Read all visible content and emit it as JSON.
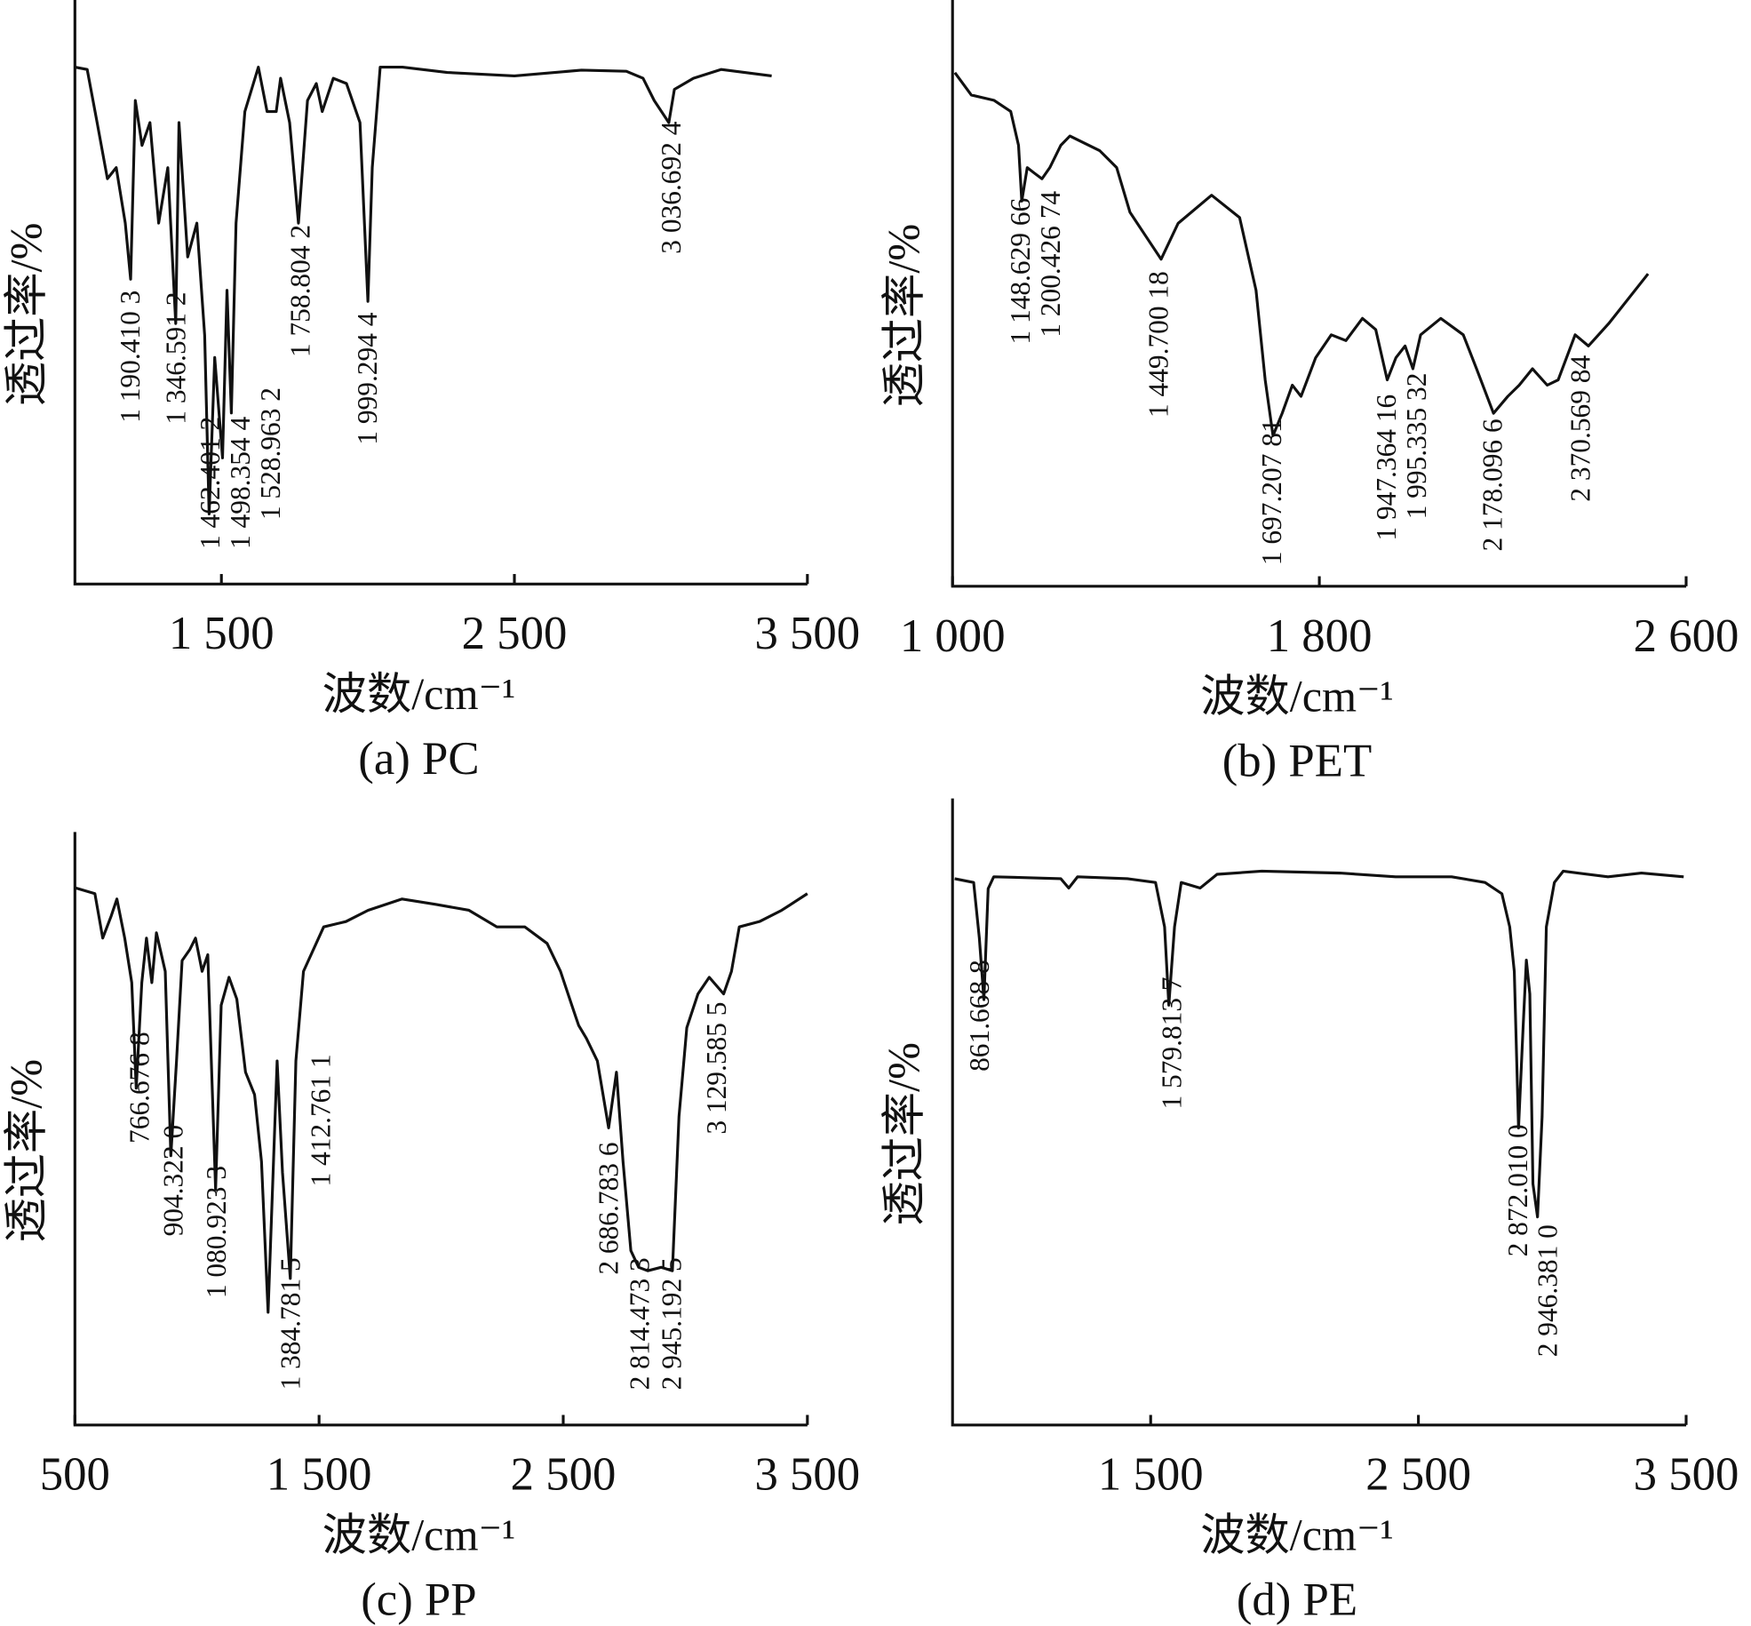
{
  "chart_data": [
    {
      "type": "line",
      "subtitle": "(a) PC",
      "xlabel": "波数/cm⁻¹",
      "ylabel": "透过率/%",
      "color": "#111111",
      "xlim": [
        1000,
        3500
      ],
      "ylim": [
        0,
        100
      ],
      "xticks": [
        {
          "value": 1500,
          "label": "1 500"
        },
        {
          "value": 2500,
          "label": "2 500"
        },
        {
          "value": 3500,
          "label": "3 500"
        }
      ],
      "x": [
        1000,
        1042,
        1076,
        1111,
        1141,
        1172,
        1190,
        1206,
        1229,
        1256,
        1286,
        1317,
        1344,
        1355,
        1385,
        1416,
        1443,
        1458,
        1477,
        1504,
        1519,
        1534,
        1550,
        1580,
        1626,
        1656,
        1687,
        1702,
        1733,
        1763,
        1794,
        1824,
        1844,
        1882,
        1927,
        1973,
        2000,
        2015,
        2042,
        2118,
        2271,
        2500,
        2729,
        2882,
        2939,
        2977,
        3027,
        3046,
        3111,
        3206,
        3378
      ],
      "values": [
        88.5,
        88.1,
        79.0,
        69.4,
        71.3,
        61.8,
        52.2,
        82.8,
        75.1,
        79.0,
        61.8,
        71.3,
        44.6,
        79.0,
        56.0,
        61.8,
        42.6,
        12.0,
        38.8,
        21.6,
        50.3,
        29.3,
        61.8,
        80.9,
        88.5,
        80.9,
        80.9,
        86.6,
        79.0,
        61.8,
        82.8,
        85.7,
        80.9,
        86.6,
        85.7,
        79.0,
        48.4,
        71.3,
        88.5,
        88.5,
        87.6,
        87.0,
        88.0,
        87.8,
        86.6,
        82.8,
        79.0,
        84.7,
        86.6,
        88.1,
        87.0
      ],
      "annotations": [
        {
          "x": 1190.4103,
          "label": "1 190.410 3"
        },
        {
          "x": 1346.5912,
          "label": "1 346.591 2"
        },
        {
          "x": 1462.4012,
          "label": "1 462.401 2"
        },
        {
          "x": 1498.3544,
          "label": "1 498.354 4"
        },
        {
          "x": 1528.9632,
          "label": "1 528.963 2"
        },
        {
          "x": 1758.8042,
          "label": "1 758.804 2"
        },
        {
          "x": 1999.2944,
          "label": "1 999.294 4"
        },
        {
          "x": 3036.6924,
          "label": "3 036.692 4"
        }
      ]
    },
    {
      "type": "line",
      "subtitle": "(b) PET",
      "xlabel": "波数/cm⁻¹",
      "ylabel": "透过率/%",
      "color": "#111111",
      "xlim": [
        1000,
        2600
      ],
      "ylim": [
        0,
        100
      ],
      "xticks": [
        {
          "value": 1000,
          "label": "1 000"
        },
        {
          "value": 1800,
          "label": "1 800"
        },
        {
          "value": 2600,
          "label": "2 600"
        }
      ],
      "x": [
        1005,
        1041,
        1090,
        1127,
        1144,
        1151,
        1163,
        1178,
        1195,
        1212,
        1236,
        1256,
        1321,
        1358,
        1387,
        1419,
        1455,
        1492,
        1565,
        1626,
        1662,
        1682,
        1699,
        1719,
        1741,
        1760,
        1792,
        1826,
        1858,
        1894,
        1923,
        1948,
        1967,
        1987,
        2004,
        2021,
        2065,
        2114,
        2143,
        2180,
        2211,
        2236,
        2265,
        2297,
        2321,
        2358,
        2387,
        2431,
        2517
      ],
      "values": [
        87.6,
        83.8,
        82.9,
        81.0,
        75.2,
        65.7,
        71.4,
        70.5,
        69.5,
        71.4,
        75.2,
        76.8,
        74.3,
        71.4,
        63.8,
        60.0,
        55.8,
        61.9,
        66.7,
        62.9,
        50.5,
        35.2,
        25.7,
        29.5,
        34.3,
        32.4,
        39.0,
        42.9,
        41.9,
        45.7,
        43.8,
        35.2,
        39.0,
        41.0,
        37.1,
        42.9,
        45.7,
        42.9,
        37.1,
        29.5,
        32.4,
        34.3,
        37.1,
        34.3,
        35.2,
        42.9,
        41.0,
        44.8,
        53.3
      ],
      "annotations": [
        {
          "x": 1148.62966,
          "label": "1 148.629 66"
        },
        {
          "x": 1200.42674,
          "label": "1 200.426 74"
        },
        {
          "x": 1449.70018,
          "label": "1 449.700 18"
        },
        {
          "x": 1697.20781,
          "label": "1 697.207 81"
        },
        {
          "x": 1947.36416,
          "label": "1 947.364 16"
        },
        {
          "x": 1995.33532,
          "label": "1 995.335 32"
        },
        {
          "x": 2178.0966,
          "label": "2 178.096 6"
        },
        {
          "x": 2370.56984,
          "label": "2 370.569 84"
        }
      ]
    },
    {
      "type": "line",
      "subtitle": "(c) PP",
      "xlabel": "波数/cm⁻¹",
      "ylabel": "透过率/%",
      "color": "#111111",
      "xlim": [
        500,
        3500
      ],
      "ylim": [
        0,
        100
      ],
      "xticks": [
        500,
        {
          "value": 1500,
          "label": "1 500"
        },
        {
          "value": 2500,
          "label": "2 500"
        },
        {
          "value": 3500,
          "label": "3 500"
        }
      ],
      "x": [
        500,
        582,
        614,
        649,
        672,
        704,
        733,
        751,
        774,
        793,
        815,
        834,
        870,
        893,
        916,
        939,
        971,
        994,
        1021,
        1044,
        1076,
        1099,
        1131,
        1163,
        1199,
        1236,
        1264,
        1291,
        1328,
        1350,
        1382,
        1405,
        1436,
        1519,
        1610,
        1701,
        1840,
        1977,
        2114,
        2228,
        2343,
        2434,
        2489,
        2535,
        2563,
        2595,
        2640,
        2686,
        2718,
        2745,
        2777,
        2809,
        2846,
        2901,
        2947,
        2974,
        3006,
        3052,
        3098,
        3157,
        3189,
        3221,
        3304,
        3395,
        3500
      ],
      "values": [
        90.6,
        89.6,
        82.1,
        85.9,
        88.7,
        82.1,
        74.6,
        56.8,
        74.6,
        82.1,
        74.6,
        83.0,
        76.5,
        45.4,
        61.4,
        78.3,
        80.2,
        82.1,
        76.5,
        79.3,
        39.7,
        70.8,
        75.5,
        71.8,
        59.5,
        55.7,
        44.4,
        19.0,
        61.4,
        42.6,
        24.7,
        61.4,
        76.5,
        84.0,
        84.9,
        86.8,
        88.7,
        87.8,
        86.8,
        84.0,
        84.0,
        81.2,
        76.5,
        70.8,
        67.4,
        65.2,
        61.4,
        50.1,
        59.5,
        44.4,
        29.4,
        26.6,
        26.0,
        26.6,
        26.0,
        52.0,
        67.0,
        72.7,
        75.5,
        72.7,
        76.5,
        84.0,
        84.9,
        86.8,
        89.6
      ],
      "annotations": [
        {
          "x": 766.6768,
          "label": "766.676 8"
        },
        {
          "x": 904.322,
          "label": "904.322 0"
        },
        {
          "x": 1080.9233,
          "label": "1 080.923 3"
        },
        {
          "x": 1384.7815,
          "label": "1 384.781 5"
        },
        {
          "x": 1412.7611,
          "label": "1 412.761 1"
        },
        {
          "x": 2686.7836,
          "label": "2 686.783 6"
        },
        {
          "x": 2814.4733,
          "label": "2 814.473 3"
        },
        {
          "x": 2945.1925,
          "label": "2 945.192 5"
        },
        {
          "x": 3129.5855,
          "label": "3 129.585 5"
        }
      ]
    },
    {
      "type": "line",
      "subtitle": "(d) PE",
      "xlabel": "波数/cm⁻¹",
      "ylabel": "透过率/%",
      "color": "#111111",
      "xlim": [
        760,
        3500
      ],
      "ylim": [
        0,
        100
      ],
      "xticks": [
        {
          "value": 1500,
          "label": "1 500"
        },
        {
          "value": 2500,
          "label": "2 500"
        },
        {
          "value": 3500,
          "label": "3 500"
        }
      ],
      "x": [
        768,
        839,
        860,
        877,
        893,
        914,
        1164,
        1194,
        1227,
        1413,
        1518,
        1552,
        1568,
        1589,
        1614,
        1685,
        1748,
        1915,
        2207,
        2415,
        2624,
        2749,
        2812,
        2841,
        2858,
        2874,
        2891,
        2903,
        2916,
        2928,
        2945,
        2962,
        2978,
        3008,
        3041,
        3208,
        3333,
        3491
      ],
      "values": [
        87.2,
        86.6,
        77.7,
        67.9,
        85.6,
        87.5,
        87.2,
        85.7,
        87.5,
        87.2,
        86.6,
        79.5,
        67.0,
        79.5,
        86.6,
        85.7,
        87.9,
        88.4,
        88.1,
        87.5,
        87.5,
        86.6,
        84.8,
        79.5,
        72.4,
        47.4,
        63.5,
        74.2,
        68.8,
        38.5,
        33.2,
        49.2,
        79.5,
        86.6,
        88.4,
        87.5,
        88.1,
        87.5
      ],
      "annotations": [
        {
          "x": 861.6688,
          "label": "861.668 8"
        },
        {
          "x": 1579.8137,
          "label": "1 579.813 7"
        },
        {
          "x": 2872.01,
          "label": "2 872.010 0"
        },
        {
          "x": 2946.381,
          "label": "2 946.381 0"
        }
      ]
    }
  ]
}
